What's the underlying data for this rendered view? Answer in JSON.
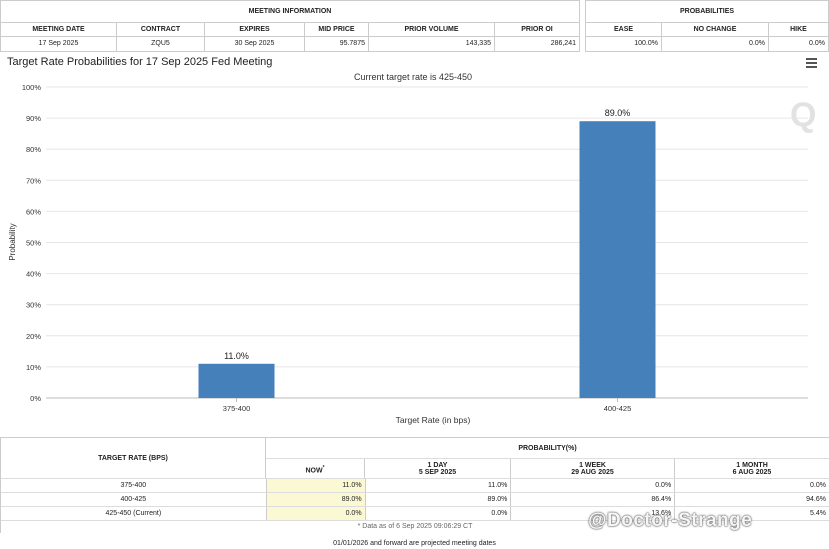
{
  "meeting_info": {
    "title": "MEETING INFORMATION",
    "headers": [
      "MEETING DATE",
      "CONTRACT",
      "EXPIRES",
      "MID PRICE",
      "PRIOR VOLUME",
      "PRIOR OI"
    ],
    "values": [
      "17 Sep 2025",
      "ZQU5",
      "30 Sep 2025",
      "95.7875",
      "143,335",
      "286,241"
    ]
  },
  "probabilities": {
    "title": "PROBABILITIES",
    "headers": [
      "EASE",
      "NO CHANGE",
      "HIKE"
    ],
    "values": [
      "100.0%",
      "0.0%",
      "0.0%"
    ]
  },
  "chart": {
    "title": "Target Rate Probabilities for 17 Sep 2025 Fed Meeting",
    "logo": "Q"
  },
  "chart_data": {
    "type": "bar",
    "subtitle": "Current target rate is 425-450",
    "categories": [
      "375-400",
      "400-425"
    ],
    "values": [
      11.0,
      89.0
    ],
    "data_labels": [
      "11.0%",
      "89.0%"
    ],
    "xlabel": "Target Rate (in bps)",
    "ylabel": "Probability",
    "ylim": [
      0,
      100
    ],
    "yticks": [
      "0%",
      "10%",
      "20%",
      "30%",
      "40%",
      "50%",
      "60%",
      "70%",
      "80%",
      "90%",
      "100%"
    ],
    "grid": true,
    "bar_color": "#4580bb"
  },
  "bottom_table": {
    "col_target": "TARGET RATE (BPS)",
    "prob_title": "PROBABILITY(%)",
    "col_headers": [
      {
        "line1": "NOW",
        "marker": "*",
        "line2": ""
      },
      {
        "line1": "1 DAY",
        "line2": "5 SEP 2025"
      },
      {
        "line1": "1 WEEK",
        "line2": "29 AUG 2025"
      },
      {
        "line1": "1 MONTH",
        "line2": "6 AUG 2025"
      }
    ],
    "rows": [
      {
        "rate": "375-400",
        "now": "11.0%",
        "day": "11.0%",
        "week": "0.0%",
        "month": "0.0%"
      },
      {
        "rate": "400-425",
        "now": "89.0%",
        "day": "89.0%",
        "week": "86.4%",
        "month": "94.6%"
      },
      {
        "rate": "425-450 (Current)",
        "now": "0.0%",
        "day": "0.0%",
        "week": "13.6%",
        "month": "5.4%"
      }
    ],
    "note": "* Data as of 6 Sep 2025 09:06:29 CT"
  },
  "footer": "01/01/2026 and forward are projected meeting dates",
  "watermark": "@Doctor-Strange"
}
